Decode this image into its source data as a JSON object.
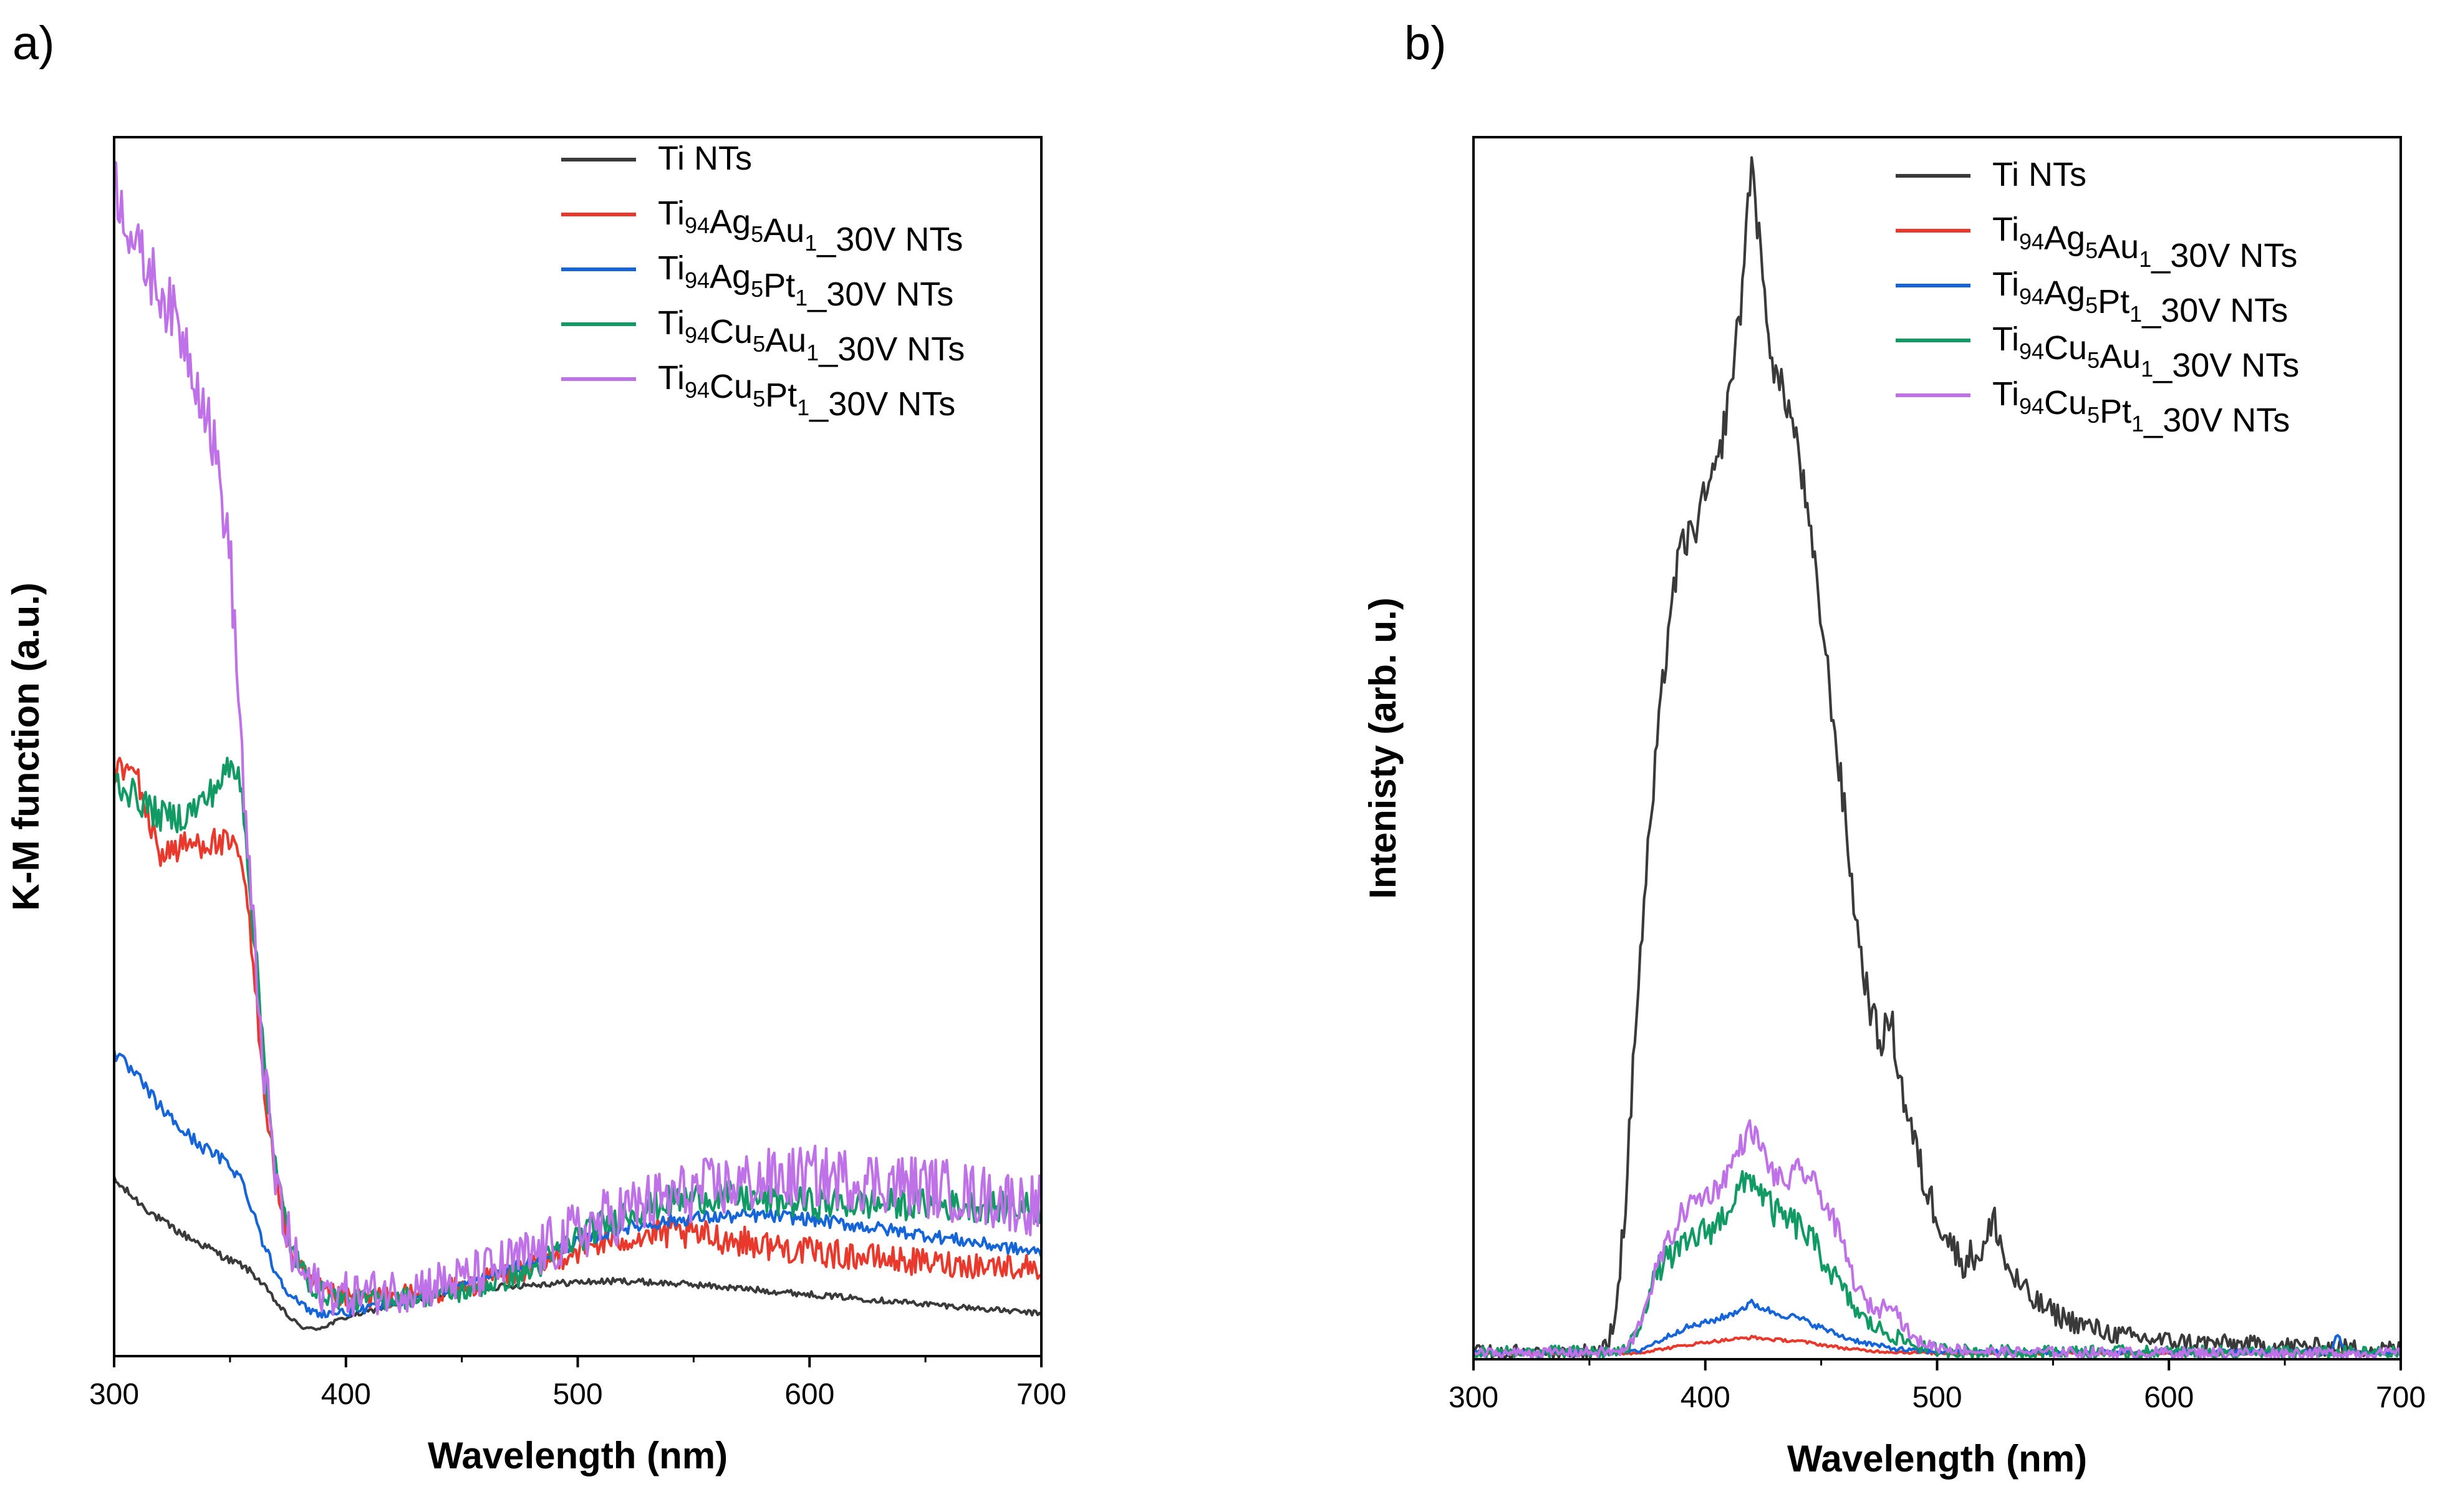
{
  "colors": {
    "ti": "#3a3a3a",
    "agau": "#e8392c",
    "agpt": "#1565d8",
    "cuau": "#119a63",
    "cupt": "#bf72e8"
  },
  "chart_data": [
    {
      "panel_label": "a)",
      "type": "line",
      "xlabel": "Wavelength (nm)",
      "ylabel": "K-M function (a.u.)",
      "xlim": [
        300,
        700
      ],
      "ylim": [
        0,
        100
      ],
      "xticks": [
        "300",
        "400",
        "500",
        "600",
        "700"
      ],
      "legend_position": "top-right",
      "series": [
        {
          "name": "Ti NTs",
          "label": {
            "base": "Ti NTs",
            "parts": [
              {
                "t": "Ti NTs"
              }
            ]
          },
          "color_key": "ti",
          "x": [
            300,
            310,
            320,
            330,
            340,
            350,
            355,
            360,
            365,
            370,
            375,
            380,
            385,
            390,
            400,
            420,
            450,
            480,
            500,
            520,
            550,
            600,
            650,
            700
          ],
          "y": [
            14.5,
            12.8,
            11.2,
            10.0,
            9.0,
            7.9,
            7.5,
            6.8,
            5.7,
            4.4,
            3.3,
            2.5,
            2.2,
            2.4,
            3.2,
            4.2,
            5.5,
            5.9,
            6.1,
            6.2,
            5.9,
            5.1,
            4.3,
            3.5
          ],
          "noise": 0.35
        },
        {
          "name": "Ti94Ag5Au1_30V NTs",
          "label": {
            "parts": [
              {
                "t": "Ti"
              },
              {
                "s": "94"
              },
              {
                "t": "Ag"
              },
              {
                "s": "5"
              },
              {
                "t": "Au"
              },
              {
                "s": "1"
              },
              {
                "t": "_30V NTs"
              }
            ]
          },
          "color_key": "agau",
          "x": [
            300,
            310,
            315,
            320,
            330,
            340,
            350,
            355,
            358,
            362,
            366,
            370,
            375,
            380,
            385,
            390,
            400,
            420,
            450,
            480,
            500,
            520,
            540,
            560,
            600,
            650,
            700
          ],
          "y": [
            48.5,
            48.0,
            44.0,
            41.5,
            42.0,
            42.5,
            42.0,
            41.0,
            36.0,
            28.0,
            20.0,
            14.0,
            9.5,
            7.0,
            6.0,
            5.3,
            4.7,
            4.9,
            5.6,
            7.4,
            8.8,
            9.8,
            10.1,
            9.8,
            8.6,
            7.7,
            7.3
          ],
          "noise": 1.3
        },
        {
          "name": "Ti94Ag5Pt1_30V NTs",
          "label": {
            "parts": [
              {
                "t": "Ti"
              },
              {
                "s": "94"
              },
              {
                "t": "Ag"
              },
              {
                "s": "5"
              },
              {
                "t": "Pt"
              },
              {
                "s": "1"
              },
              {
                "t": "_30V  NTs"
              }
            ]
          },
          "color_key": "agpt",
          "x": [
            300,
            310,
            320,
            330,
            340,
            350,
            355,
            360,
            365,
            370,
            375,
            380,
            385,
            390,
            400,
            420,
            450,
            480,
            500,
            520,
            550,
            580,
            600,
            650,
            700
          ],
          "y": [
            25.0,
            23.0,
            20.5,
            18.5,
            17.0,
            15.8,
            14.5,
            12.0,
            9.0,
            6.8,
            5.4,
            4.3,
            3.7,
            3.5,
            3.6,
            4.3,
            5.8,
            7.8,
            9.4,
            10.6,
            11.4,
            11.6,
            11.3,
            10.0,
            8.5
          ],
          "noise": 0.55
        },
        {
          "name": "Ti94Cu5Au1_30V NTs",
          "label": {
            "parts": [
              {
                "t": "Ti"
              },
              {
                "s": "94"
              },
              {
                "t": "Cu"
              },
              {
                "s": "5"
              },
              {
                "t": "Au"
              },
              {
                "s": "1"
              },
              {
                "t": "_30V  NTs"
              }
            ]
          },
          "color_key": "cuau",
          "x": [
            300,
            310,
            320,
            330,
            340,
            350,
            355,
            358,
            362,
            366,
            370,
            375,
            380,
            385,
            390,
            400,
            420,
            450,
            480,
            500,
            520,
            540,
            560,
            580,
            600,
            650,
            700
          ],
          "y": [
            47.5,
            46.0,
            44.5,
            44.5,
            46.0,
            48.5,
            47.5,
            40.0,
            31.0,
            22.0,
            15.0,
            10.0,
            7.3,
            6.0,
            5.2,
            4.6,
            4.7,
            5.3,
            7.0,
            9.8,
            11.8,
            12.8,
            13.2,
            12.9,
            12.6,
            12.5,
            12.2
          ],
          "noise": 1.3
        },
        {
          "name": "Ti94Cu5Pt1_30V NTs",
          "label": {
            "parts": [
              {
                "t": "Ti"
              },
              {
                "s": "94"
              },
              {
                "t": "Cu"
              },
              {
                "s": "5"
              },
              {
                "t": "Pt"
              },
              {
                "s": "1"
              },
              {
                "t": "_30V  NTs"
              }
            ]
          },
          "color_key": "cupt",
          "x": [
            300,
            305,
            310,
            320,
            330,
            340,
            345,
            350,
            352,
            355,
            358,
            362,
            366,
            370,
            375,
            380,
            385,
            390,
            400,
            420,
            450,
            480,
            500,
            520,
            550,
            580,
            600,
            620,
            650,
            700
          ],
          "y": [
            97.0,
            94.0,
            91.0,
            88.0,
            84.0,
            78.0,
            73.0,
            66.0,
            60.0,
            50.0,
            40.0,
            30.0,
            21.0,
            14.0,
            9.5,
            7.0,
            6.0,
            5.4,
            5.1,
            5.4,
            6.3,
            8.3,
            10.2,
            12.0,
            13.6,
            14.5,
            14.8,
            14.6,
            14.0,
            12.4
          ],
          "noise": 2.6
        }
      ]
    },
    {
      "panel_label": "b)",
      "type": "line",
      "xlabel": "Wavelength (nm)",
      "ylabel": "Intenisty (arb. u.)",
      "xlim": [
        300,
        700
      ],
      "ylim": [
        0,
        100
      ],
      "xticks": [
        "300",
        "400",
        "500",
        "600",
        "700"
      ],
      "legend_position": "top-right",
      "series": [
        {
          "name": "Ti NTs",
          "label": {
            "parts": [
              {
                "t": "Ti NTs"
              }
            ]
          },
          "color_key": "ti",
          "x": [
            300,
            350,
            358,
            362,
            366,
            370,
            375,
            380,
            385,
            390,
            395,
            400,
            405,
            410,
            415,
            420,
            425,
            430,
            435,
            440,
            445,
            450,
            455,
            460,
            465,
            470,
            475,
            480,
            485,
            490,
            495,
            500,
            505,
            510,
            515,
            520,
            525,
            530,
            540,
            550,
            560,
            570,
            580,
            590,
            600,
            620,
            650,
            700
          ],
          "y": [
            0.5,
            0.6,
            1.0,
            5.0,
            14.0,
            28.0,
            41.0,
            52.0,
            62.0,
            67.0,
            68.0,
            71.0,
            73.0,
            79.0,
            86.0,
            99.0,
            88.0,
            81.0,
            79.0,
            75.0,
            68.0,
            61.0,
            53.0,
            45.0,
            36.0,
            30.0,
            26.0,
            28.0,
            22.0,
            18.0,
            14.0,
            12.0,
            10.0,
            8.0,
            8.5,
            9.0,
            11.5,
            7.5,
            5.0,
            3.8,
            3.0,
            2.4,
            1.9,
            1.7,
            1.5,
            1.3,
            1.1,
            0.8
          ],
          "noise": 1.6
        },
        {
          "name": "Ti94Ag5Au1_30V NTs",
          "label": {
            "parts": [
              {
                "t": "Ti"
              },
              {
                "s": "94"
              },
              {
                "t": "Ag"
              },
              {
                "s": "5"
              },
              {
                "t": "Au"
              },
              {
                "s": "1"
              },
              {
                "t": "_30V NTs"
              }
            ]
          },
          "color_key": "agau",
          "x": [
            300,
            370,
            380,
            390,
            400,
            410,
            420,
            430,
            440,
            450,
            460,
            470,
            480,
            500,
            700
          ],
          "y": [
            0.5,
            0.5,
            0.8,
            1.1,
            1.4,
            1.6,
            1.8,
            1.6,
            1.5,
            1.2,
            0.9,
            0.7,
            0.6,
            0.5,
            0.5
          ],
          "noise": 0.25
        },
        {
          "name": "Ti94Ag5Pt1_30V NTs",
          "label": {
            "parts": [
              {
                "t": "Ti"
              },
              {
                "s": "94"
              },
              {
                "t": "Ag"
              },
              {
                "s": "5"
              },
              {
                "t": "Pt"
              },
              {
                "s": "1"
              },
              {
                "t": "_30V  NTs"
              }
            ]
          },
          "color_key": "agpt",
          "x": [
            300,
            370,
            380,
            390,
            400,
            410,
            420,
            430,
            440,
            450,
            460,
            470,
            480,
            490,
            500,
            600,
            670,
            673,
            675,
            678,
            700
          ],
          "y": [
            0.5,
            0.6,
            1.5,
            2.5,
            3.0,
            3.6,
            4.6,
            3.8,
            3.4,
            2.6,
            1.8,
            1.3,
            0.9,
            0.7,
            0.6,
            0.6,
            0.6,
            2.2,
            0.9,
            0.6,
            0.5
          ],
          "noise": 0.45
        },
        {
          "name": "Ti94Cu5Au1_30V NTs",
          "label": {
            "parts": [
              {
                "t": "Ti"
              },
              {
                "s": "94"
              },
              {
                "t": "Cu"
              },
              {
                "s": "5"
              },
              {
                "t": "Au"
              },
              {
                "s": "1"
              },
              {
                "t": "_30V  NTs"
              }
            ]
          },
          "color_key": "cuau",
          "x": [
            300,
            365,
            370,
            375,
            380,
            385,
            390,
            395,
            400,
            405,
            410,
            415,
            420,
            425,
            430,
            435,
            440,
            445,
            450,
            455,
            460,
            465,
            470,
            475,
            480,
            490,
            500,
            520,
            700
          ],
          "y": [
            0.5,
            0.6,
            2.0,
            5.0,
            7.5,
            8.5,
            9.0,
            10.0,
            10.5,
            11.0,
            12.5,
            14.0,
            15.0,
            13.5,
            12.0,
            11.5,
            11.0,
            10.0,
            8.5,
            7.0,
            5.5,
            4.0,
            3.0,
            2.5,
            2.0,
            1.2,
            0.8,
            0.6,
            0.5
          ],
          "noise": 1.3
        },
        {
          "name": "Ti94Cu5Pt1_30V NTs",
          "label": {
            "parts": [
              {
                "t": "Ti"
              },
              {
                "s": "94"
              },
              {
                "t": "Cu"
              },
              {
                "s": "5"
              },
              {
                "t": "Pt"
              },
              {
                "s": "1"
              },
              {
                "t": "_30V  NTs"
              }
            ]
          },
          "color_key": "cupt",
          "x": [
            300,
            365,
            370,
            375,
            380,
            385,
            390,
            395,
            400,
            405,
            410,
            415,
            420,
            425,
            430,
            435,
            440,
            445,
            450,
            455,
            460,
            465,
            470,
            475,
            480,
            485,
            490,
            500,
            520,
            700
          ],
          "y": [
            0.5,
            0.6,
            2.0,
            5.0,
            8.0,
            10.0,
            12.0,
            13.0,
            13.5,
            14.0,
            15.5,
            17.5,
            19.0,
            17.0,
            15.0,
            14.5,
            15.5,
            15.0,
            13.5,
            11.5,
            9.0,
            6.0,
            4.5,
            4.0,
            5.0,
            3.0,
            1.6,
            1.0,
            0.6,
            0.5
          ],
          "noise": 1.0
        }
      ]
    }
  ]
}
